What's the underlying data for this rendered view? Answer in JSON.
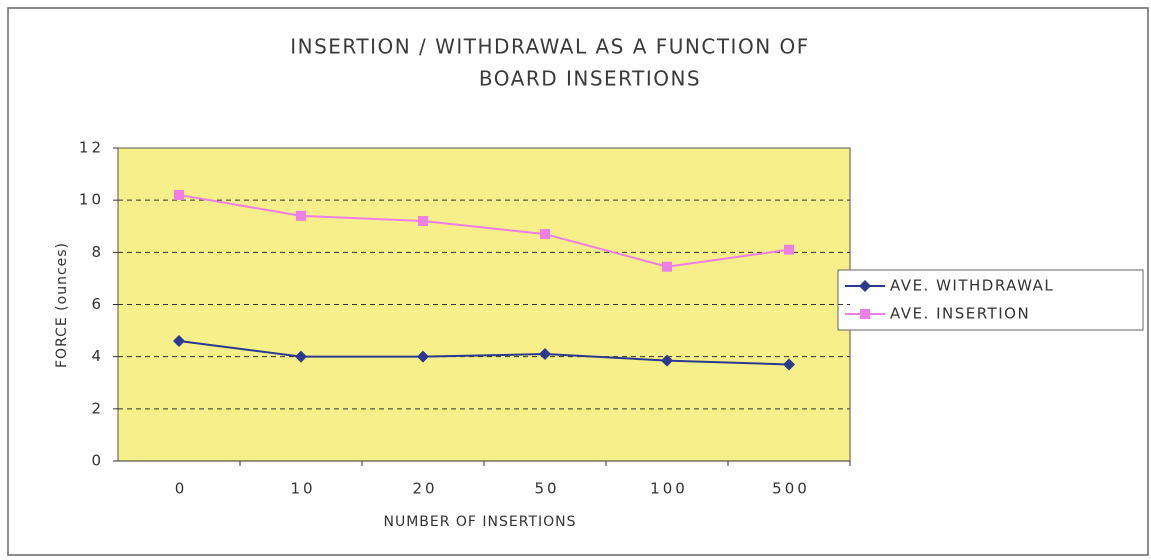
{
  "chart_data": {
    "type": "line",
    "title": [
      "INSERTION / WITHDRAWAL AS A FUNCTION OF",
      "BOARD INSERTIONS"
    ],
    "x_label": "NUMBER OF INSERTIONS",
    "y_label": "FORCE (ounces)",
    "categories": [
      "0",
      "10",
      "20",
      "50",
      "100",
      "500"
    ],
    "series": [
      {
        "name": "AVE. WITHDRAWAL",
        "color": "#2b3a8f",
        "marker": "diamond",
        "values": [
          4.6,
          4.0,
          4.0,
          4.1,
          3.85,
          3.7
        ]
      },
      {
        "name": "AVE. INSERTION",
        "color": "#ee7fe6",
        "marker": "square",
        "values": [
          10.2,
          9.4,
          9.2,
          8.7,
          7.45,
          8.1
        ]
      }
    ],
    "ylim": [
      0,
      12
    ],
    "yticks": [
      0,
      2,
      4,
      6,
      8,
      10,
      12
    ],
    "grid": true,
    "legend": "right"
  }
}
